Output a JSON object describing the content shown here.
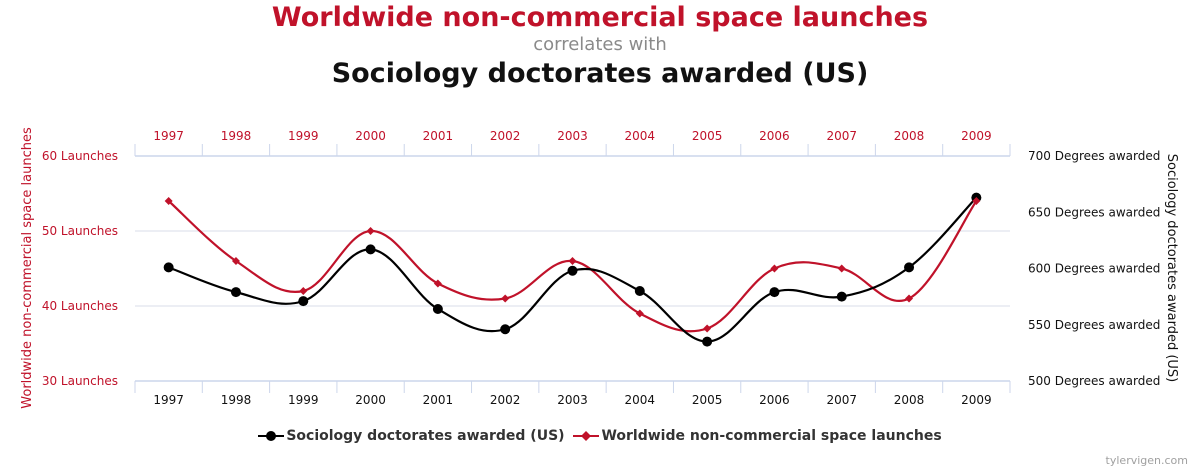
{
  "title": {
    "series_a": "Worldwide non-commercial space launches",
    "connector": "correlates with",
    "series_b": "Sociology doctorates awarded (US)"
  },
  "credit": "tylervigen.com",
  "colors": {
    "launches": "#c0122a",
    "doctorates": "#000000",
    "axis": "#ccd6eb",
    "grid": "#d8dee8"
  },
  "chart_data": {
    "type": "line",
    "categories": [
      "1997",
      "1998",
      "1999",
      "2000",
      "2001",
      "2002",
      "2003",
      "2004",
      "2005",
      "2006",
      "2007",
      "2008",
      "2009"
    ],
    "series": [
      {
        "name": "Sociology doctorates awarded (US)",
        "axis": "right",
        "marker": "circle",
        "values": [
          601,
          579,
          571,
          617,
          564,
          546,
          598,
          580,
          535,
          579,
          575,
          601,
          663
        ]
      },
      {
        "name": "Worldwide non-commercial space launches",
        "axis": "left",
        "marker": "diamond",
        "values": [
          54,
          46,
          42,
          50,
          43,
          41,
          46,
          39,
          37,
          45,
          45,
          41,
          54
        ]
      }
    ],
    "left_axis": {
      "label": "Worldwide non-commercial space launches",
      "ylim": [
        30,
        60
      ],
      "ticks": [
        {
          "value": 30,
          "label": "30 Launches"
        },
        {
          "value": 40,
          "label": "40 Launches"
        },
        {
          "value": 50,
          "label": "50 Launches"
        },
        {
          "value": 60,
          "label": "60 Launches"
        }
      ]
    },
    "right_axis": {
      "label": "Sociology doctorates awarded (US)",
      "ylim": [
        500,
        700
      ],
      "ticks": [
        {
          "value": 500,
          "label": "500 Degrees awarded"
        },
        {
          "value": 550,
          "label": "550 Degrees awarded"
        },
        {
          "value": 600,
          "label": "600 Degrees awarded"
        },
        {
          "value": 650,
          "label": "650 Degrees awarded"
        },
        {
          "value": 700,
          "label": "700 Degrees awarded"
        }
      ]
    },
    "legend": {
      "position": "bottom",
      "items": [
        "Sociology doctorates awarded (US)",
        "Worldwide non-commercial space launches"
      ]
    }
  }
}
